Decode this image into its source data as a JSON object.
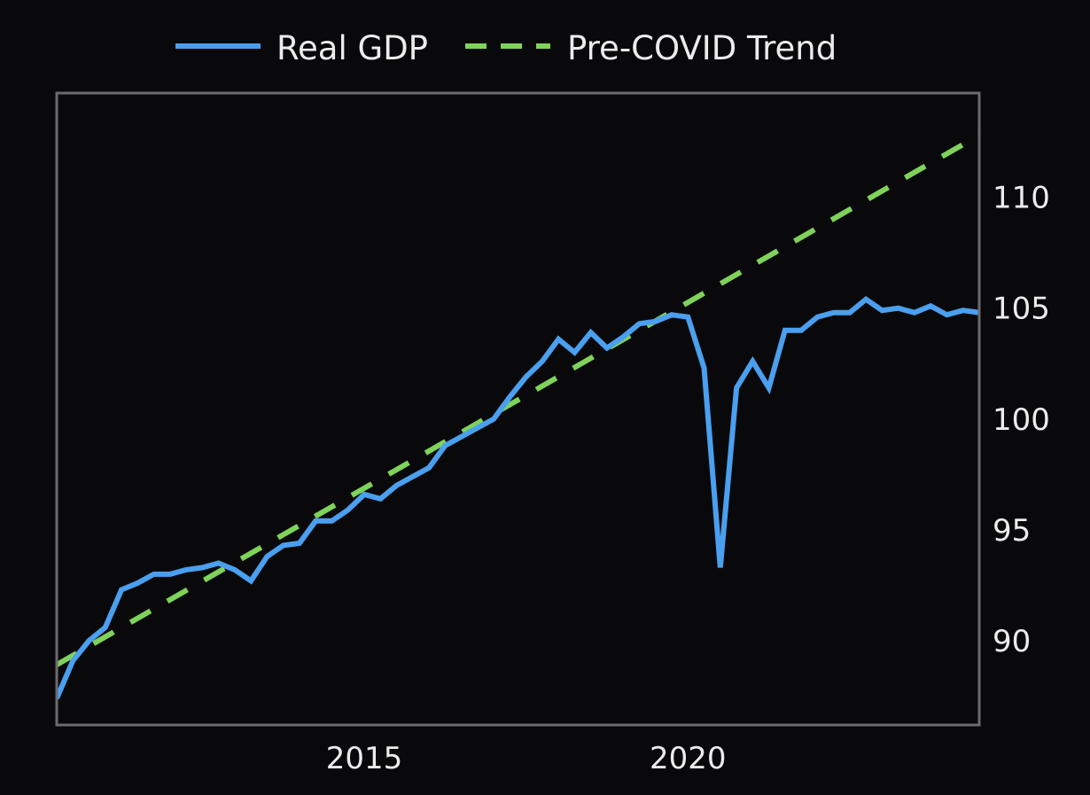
{
  "chart_data": {
    "type": "line",
    "title": "",
    "xlabel": "",
    "ylabel": "",
    "xlim": [
      2010.25,
      2024.5
    ],
    "ylim": [
      86.2,
      114.7
    ],
    "grid": false,
    "legend_position": "top-center",
    "x_ticks": [
      2015,
      2020
    ],
    "x_tick_labels": [
      "2015",
      "2020"
    ],
    "y_ticks": [
      90,
      95,
      100,
      105,
      110
    ],
    "y_tick_labels": [
      "90",
      "95",
      "100",
      "105",
      "110"
    ],
    "y_axis_side": "right",
    "x": [
      2010.25,
      2010.5,
      2010.75,
      2011.0,
      2011.25,
      2011.5,
      2011.75,
      2012.0,
      2012.25,
      2012.5,
      2012.75,
      2013.0,
      2013.25,
      2013.5,
      2013.75,
      2014.0,
      2014.25,
      2014.5,
      2014.75,
      2015.0,
      2015.25,
      2015.5,
      2015.75,
      2016.0,
      2016.25,
      2016.5,
      2016.75,
      2017.0,
      2017.25,
      2017.5,
      2017.75,
      2018.0,
      2018.25,
      2018.5,
      2018.75,
      2019.0,
      2019.25,
      2019.5,
      2019.75,
      2020.0,
      2020.25,
      2020.5,
      2020.75,
      2021.0,
      2021.25,
      2021.5,
      2021.75,
      2022.0,
      2022.25,
      2022.5,
      2022.75,
      2023.0,
      2023.25,
      2023.5,
      2023.75,
      2024.0,
      2024.25,
      2024.5
    ],
    "series": [
      {
        "name": "Real GDP",
        "style": "solid",
        "color": "#4a9fef",
        "values": [
          87.4,
          89.1,
          90.0,
          90.6,
          92.3,
          92.6,
          93.0,
          93.0,
          93.2,
          93.3,
          93.5,
          93.2,
          92.7,
          93.8,
          94.3,
          94.4,
          95.4,
          95.4,
          95.9,
          96.6,
          96.4,
          97.0,
          97.4,
          97.8,
          98.8,
          99.2,
          99.6,
          100.0,
          101.0,
          101.9,
          102.6,
          103.6,
          103.0,
          103.9,
          103.2,
          103.7,
          104.3,
          104.4,
          104.7,
          104.6,
          102.3,
          93.3,
          101.4,
          102.6,
          101.4,
          104.0,
          104.0,
          104.6,
          104.8,
          104.8,
          105.4,
          104.9,
          105.0,
          104.8,
          105.1,
          104.7,
          104.9,
          104.8
        ]
      },
      {
        "name": "Pre-COVID Trend",
        "style": "dashed",
        "color": "#7fd35a",
        "x": [
          2010.3,
          2024.5
        ],
        "values": [
          89.0,
          112.8
        ]
      }
    ]
  },
  "legend": {
    "items": [
      "Real GDP",
      "Pre-COVID Trend"
    ]
  },
  "colors": {
    "background": "#09090b",
    "frame": "#6b6b70",
    "text": "#ececec"
  }
}
